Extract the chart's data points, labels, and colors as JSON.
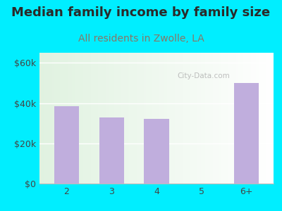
{
  "title": "Median family income by family size",
  "subtitle": "All residents in Zwolle, LA",
  "categories": [
    "2",
    "3",
    "4",
    "5",
    "6+"
  ],
  "values": [
    38500,
    33000,
    32000,
    0,
    50000
  ],
  "bar_color": "#c0aedd",
  "title_color": "#2a2a2a",
  "subtitle_color": "#887766",
  "outer_bg_color": "#00eeff",
  "yticks": [
    0,
    20000,
    40000,
    60000
  ],
  "ytick_labels": [
    "$0",
    "$20k",
    "$40k",
    "$60k"
  ],
  "ylim": [
    0,
    65000
  ],
  "watermark": "City-Data.com",
  "title_fontsize": 13,
  "subtitle_fontsize": 10,
  "tick_fontsize": 9
}
